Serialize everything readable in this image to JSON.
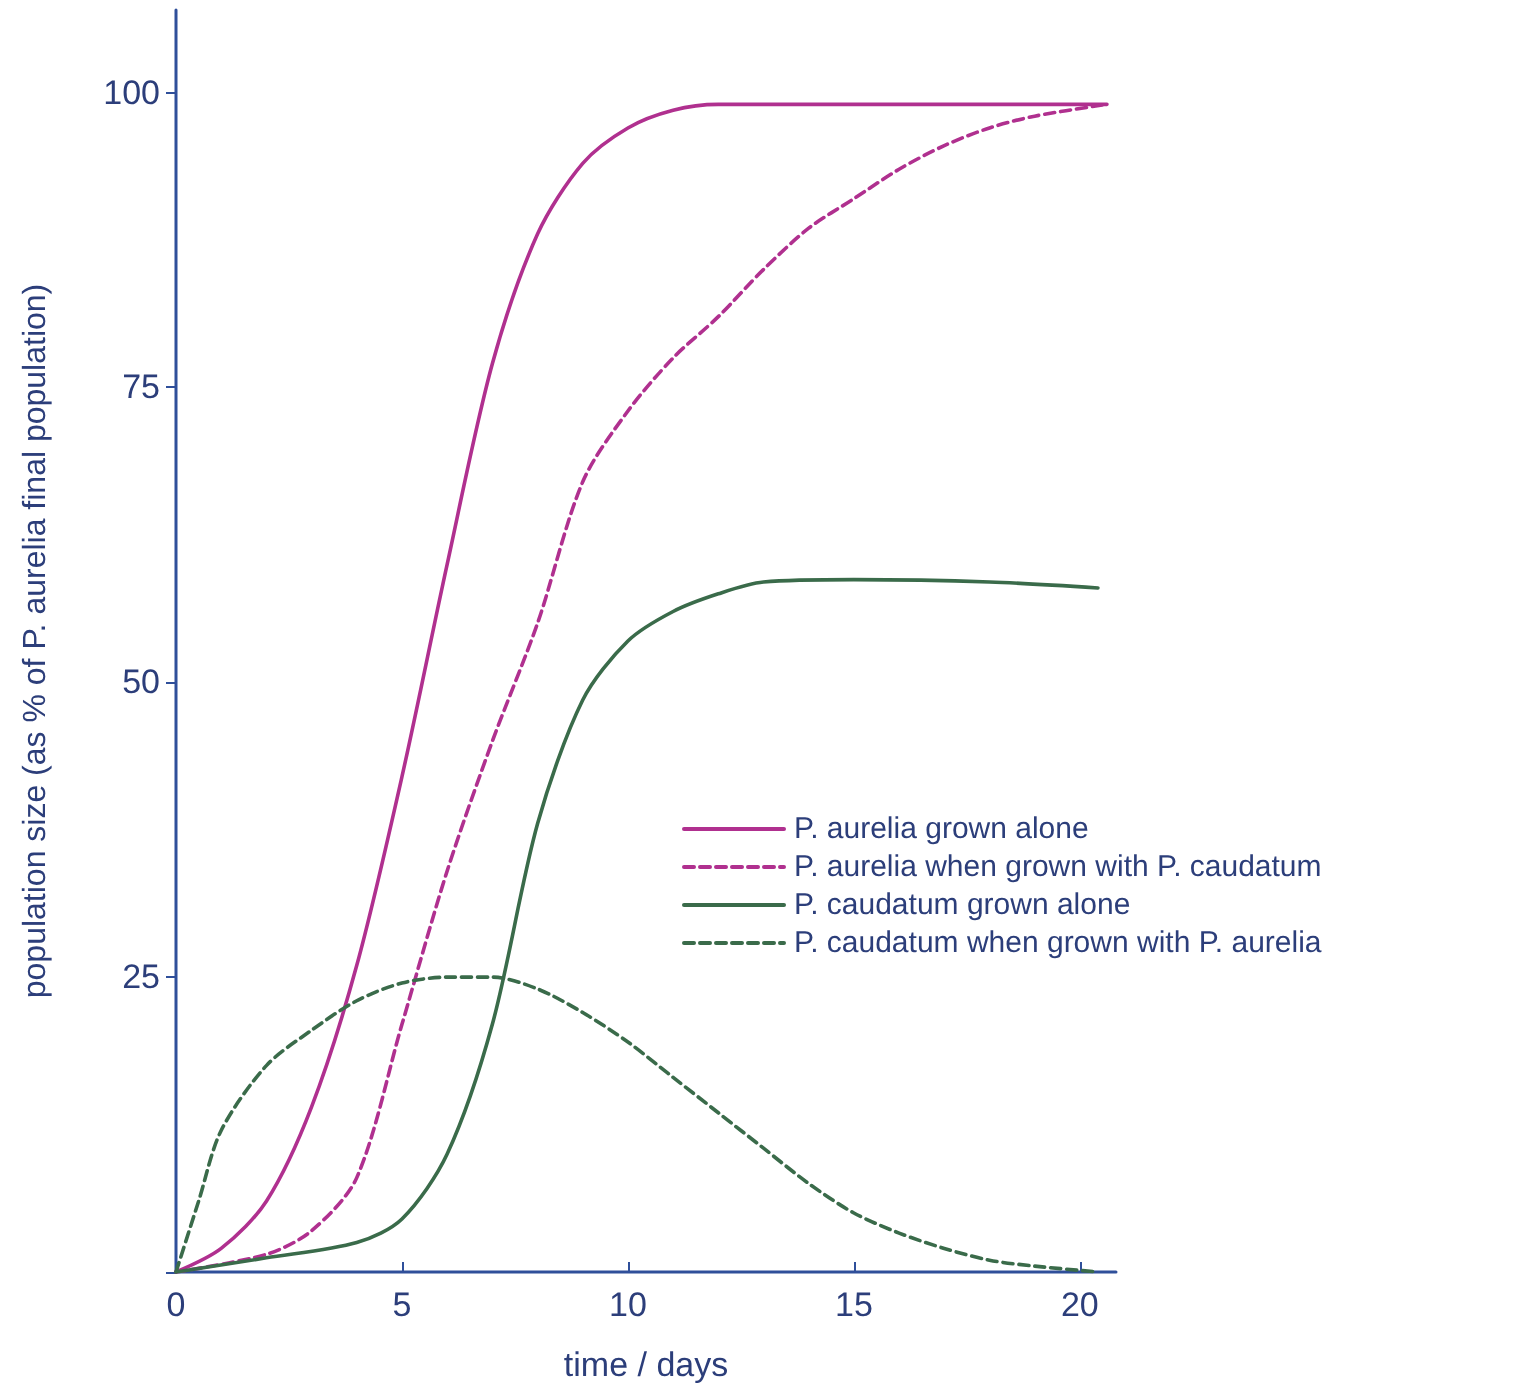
{
  "chart_data": {
    "type": "line",
    "xlabel": "time / days",
    "ylabel": "population size (as % of P. aurelia final population)",
    "xlim": [
      0,
      20.8
    ],
    "xticks": [
      0,
      5,
      10,
      15,
      20
    ],
    "ylim": [
      0,
      107
    ],
    "yticks": [
      {
        "value": 0,
        "label": null
      },
      25,
      50,
      75,
      100
    ],
    "grid": false,
    "legend": "right",
    "marker": "none",
    "series": [
      {
        "name": "P. aurelia grown alone",
        "color": "#b0308f",
        "line_style": "solid",
        "x": [
          0,
          1,
          2,
          3,
          4,
          5,
          6,
          7,
          8,
          9,
          10,
          11,
          12,
          13,
          15,
          18,
          20.6
        ],
        "values": [
          0,
          2,
          6,
          14,
          26,
          42,
          60,
          77,
          88,
          94,
          97,
          98.5,
          99,
          99,
          99,
          99,
          99
        ]
      },
      {
        "name": "P. aurelia when grown with P. caudatum",
        "color": "#b0308f",
        "line_style": "dashed",
        "x": [
          0,
          2,
          3,
          4,
          5,
          6,
          7,
          8,
          9,
          10,
          11,
          12,
          13,
          14,
          15,
          16,
          17,
          18,
          19,
          20.6
        ],
        "values": [
          0,
          1.5,
          3.5,
          8,
          21,
          34,
          45,
          55,
          67,
          73,
          77.5,
          81,
          85,
          88.5,
          91,
          93.5,
          95.5,
          97,
          98,
          99
        ]
      },
      {
        "name": "P. caudatum grown alone",
        "color": "#3a6b4a",
        "line_style": "solid",
        "x": [
          0,
          2,
          4,
          5,
          6,
          7,
          8,
          9,
          10,
          11,
          12,
          13,
          15,
          18,
          20.4
        ],
        "values": [
          0,
          1.2,
          2.5,
          4.5,
          10,
          21,
          38,
          48.5,
          53.5,
          56,
          57.5,
          58.5,
          58.7,
          58.5,
          58
        ]
      },
      {
        "name": "P. caudatum when grown with P. aurelia",
        "color": "#3a6b4a",
        "line_style": "dashed",
        "x": [
          0,
          0.5,
          1,
          2,
          3,
          4,
          5,
          6,
          7,
          8,
          9,
          10,
          11,
          12,
          13,
          14,
          15,
          16,
          17,
          18,
          19,
          20.4
        ],
        "values": [
          0,
          6,
          12,
          17.5,
          20.5,
          23,
          24.5,
          25,
          25,
          24,
          22,
          19.5,
          16.5,
          13.5,
          10.5,
          7.5,
          5,
          3.3,
          2,
          1,
          0.5,
          0
        ]
      }
    ]
  }
}
